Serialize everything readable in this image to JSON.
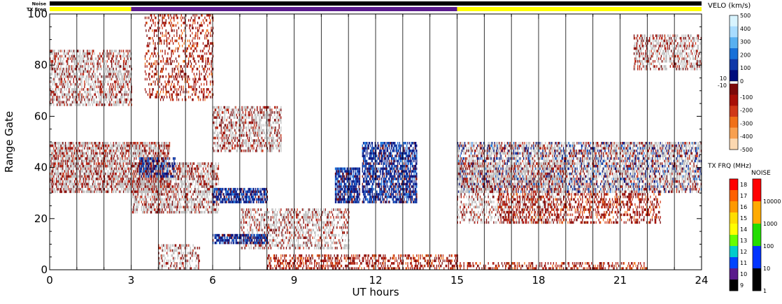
{
  "chart_data": {
    "type": "heatmap",
    "xlabel": "UT hours",
    "ylabel": "Range Gate",
    "xlim": [
      0,
      24
    ],
    "ylim": [
      0,
      100
    ],
    "x_ticks": [
      "0",
      "3",
      "6",
      "9",
      "12",
      "15",
      "18",
      "21",
      "24"
    ],
    "y_ticks": [
      "0",
      "20",
      "40",
      "60",
      "80",
      "100"
    ],
    "vertical_grid_hours": [
      1,
      2,
      3,
      4,
      5,
      6,
      7,
      8,
      9,
      10,
      11,
      12,
      13,
      14,
      15,
      16,
      17,
      18,
      19,
      20,
      21,
      22,
      23
    ],
    "top_bars": [
      {
        "label": "Noise",
        "segments": [
          {
            "from": 0,
            "to": 24,
            "color": "#000000"
          }
        ]
      },
      {
        "label": "TX Freq",
        "segments": [
          {
            "from": 0,
            "to": 3,
            "color": "#ffff00"
          },
          {
            "from": 3,
            "to": 15,
            "color": "#5a1a8c"
          },
          {
            "from": 15,
            "to": 24,
            "color": "#ffff00"
          }
        ]
      }
    ],
    "ground_scatter_color": "#c0c0c0",
    "echo_bands": [
      {
        "kind": "ground",
        "from": 0,
        "to": 4.4,
        "gate_lo": 30,
        "gate_hi": 50,
        "density": 0.75,
        "tint": "red"
      },
      {
        "kind": "ground",
        "from": 0,
        "to": 3,
        "gate_lo": 64,
        "gate_hi": 86,
        "density": 0.55,
        "tint": "red"
      },
      {
        "kind": "ground",
        "from": 3,
        "to": 6.2,
        "gate_lo": 22,
        "gate_hi": 42,
        "density": 0.6,
        "tint": "red"
      },
      {
        "kind": "ground",
        "from": 6,
        "to": 8.5,
        "gate_lo": 46,
        "gate_hi": 64,
        "density": 0.55,
        "tint": "red"
      },
      {
        "kind": "ground",
        "from": 7,
        "to": 11,
        "gate_lo": 8,
        "gate_hi": 24,
        "density": 0.45,
        "tint": "red"
      },
      {
        "kind": "ground",
        "from": 15,
        "to": 24,
        "gate_lo": 30,
        "gate_hi": 50,
        "density": 0.65,
        "tint": "mix"
      },
      {
        "kind": "ground",
        "from": 15,
        "to": 19,
        "gate_lo": 18,
        "gate_hi": 42,
        "density": 0.35,
        "tint": "red"
      },
      {
        "kind": "ground",
        "from": 4,
        "to": 5.5,
        "gate_lo": 0,
        "gate_hi": 10,
        "density": 0.45,
        "tint": "red"
      },
      {
        "kind": "ground",
        "from": 21.5,
        "to": 24,
        "gate_lo": 78,
        "gate_hi": 92,
        "density": 0.5,
        "tint": "red"
      },
      {
        "kind": "velocity",
        "from": 6,
        "to": 8,
        "gate_lo": 26,
        "gate_hi": 32,
        "density": 0.75,
        "tint": "blue"
      },
      {
        "kind": "velocity",
        "from": 6,
        "to": 8,
        "gate_lo": 10,
        "gate_hi": 14,
        "density": 0.75,
        "tint": "blue"
      },
      {
        "kind": "velocity",
        "from": 10.5,
        "to": 11.4,
        "gate_lo": 26,
        "gate_hi": 40,
        "density": 0.8,
        "tint": "blue"
      },
      {
        "kind": "velocity",
        "from": 11.5,
        "to": 13.5,
        "gate_lo": 26,
        "gate_hi": 50,
        "density": 0.7,
        "tint": "blue"
      },
      {
        "kind": "velocity",
        "from": 3.3,
        "to": 4.6,
        "gate_lo": 36,
        "gate_hi": 44,
        "density": 0.5,
        "tint": "blue"
      },
      {
        "kind": "velocity",
        "from": 8,
        "to": 15,
        "gate_lo": 0,
        "gate_hi": 6,
        "density": 0.45,
        "tint": "red"
      },
      {
        "kind": "velocity",
        "from": 15,
        "to": 22,
        "gate_lo": 0,
        "gate_hi": 3,
        "density": 0.4,
        "tint": "red"
      },
      {
        "kind": "velocity",
        "from": 16.5,
        "to": 22.5,
        "gate_lo": 18,
        "gate_hi": 30,
        "density": 0.35,
        "tint": "red"
      },
      {
        "kind": "velocity",
        "from": 3.5,
        "to": 6,
        "gate_lo": 66,
        "gate_hi": 100,
        "density": 0.3,
        "tint": "red"
      }
    ],
    "velocity_scale": {
      "title": "VELO (km/s)",
      "ticks": [
        "500",
        "400",
        "300",
        "200",
        "100",
        "0",
        "-100",
        "-200",
        "-300",
        "-400",
        "-500"
      ],
      "side_labels": [
        "10",
        "-10"
      ],
      "colors": [
        "#d8f4ff",
        "#a8dcff",
        "#58b0f0",
        "#1870d8",
        "#1038a8",
        "#000c7c",
        "#ffffff",
        "#7c0a0a",
        "#a81008",
        "#d03818",
        "#f07018",
        "#f8a050",
        "#fcd8b0"
      ]
    },
    "tx_frq_scale": {
      "title": "TX FRQ (MHz)",
      "ticks": [
        "18",
        "17",
        "16",
        "15",
        "14",
        "13",
        "12",
        "11",
        "10",
        "9"
      ],
      "colors": [
        "#ff0000",
        "#ff6000",
        "#ff9900",
        "#ffdd00",
        "#ffff00",
        "#66ff00",
        "#00cccc",
        "#0044ff",
        "#5a1a8c",
        "#000000"
      ]
    },
    "noise_scale": {
      "title": "NOISE",
      "ticks": [
        "10000",
        "1000",
        "100",
        "10",
        "1"
      ],
      "colors": [
        "#ff0000",
        "#ffaa00",
        "#22dd00",
        "#0033ff",
        "#000000"
      ]
    }
  }
}
